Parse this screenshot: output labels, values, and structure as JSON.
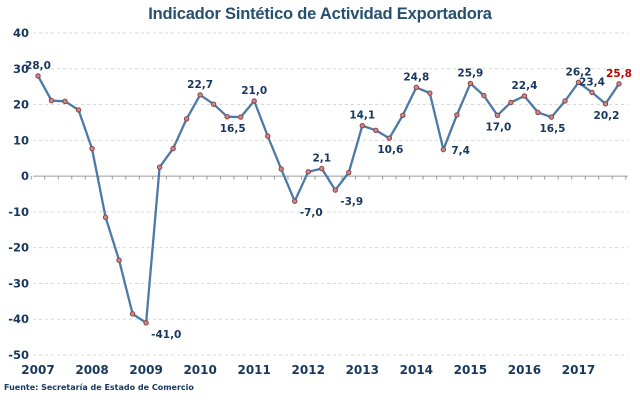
{
  "chart_data": {
    "type": "line",
    "title": "Indicador Sintético de Actividad Exportadora",
    "source": "Fuente: Secretaría de Estado de Comercio",
    "x_unit": "quarterly",
    "categories": [
      "2007",
      "2008",
      "2009",
      "2010",
      "2011",
      "2012",
      "2013",
      "2014",
      "2015",
      "2016",
      "2017"
    ],
    "y_ticks": [
      40,
      30,
      20,
      10,
      0,
      -10,
      -20,
      -30,
      -40,
      -50
    ],
    "ylim": [
      -50,
      40
    ],
    "grid": "dashed horizontal",
    "legend": "none",
    "values": [
      28.0,
      21.1,
      20.9,
      18.5,
      7.7,
      -11.5,
      -23.5,
      -38.5,
      -41.0,
      2.5,
      7.7,
      16.0,
      22.7,
      20.1,
      16.6,
      16.5,
      21.0,
      11.2,
      2.0,
      -7.0,
      1.2,
      2.1,
      -3.9,
      1.0,
      14.1,
      12.8,
      10.6,
      17.0,
      24.8,
      23.2,
      7.4,
      17.1,
      25.9,
      22.5,
      17.0,
      20.6,
      22.4,
      17.8,
      16.5,
      21.0,
      26.2,
      23.4,
      20.2,
      25.8
    ],
    "point_labels": [
      {
        "index": 0,
        "text": "28,0",
        "pos": "above"
      },
      {
        "index": 8,
        "text": "-41,0",
        "pos": "below-right"
      },
      {
        "index": 12,
        "text": "22,7",
        "pos": "above"
      },
      {
        "index": 15,
        "text": "16,5",
        "pos": "below-left"
      },
      {
        "index": 16,
        "text": "21,0",
        "pos": "above"
      },
      {
        "index": 19,
        "text": "-7,0",
        "pos": "below-right"
      },
      {
        "index": 21,
        "text": "2,1",
        "pos": "above"
      },
      {
        "index": 22,
        "text": "-3,9",
        "pos": "below-right"
      },
      {
        "index": 24,
        "text": "14,1",
        "pos": "above"
      },
      {
        "index": 26,
        "text": "10,6",
        "pos": "below"
      },
      {
        "index": 28,
        "text": "24,8",
        "pos": "above"
      },
      {
        "index": 30,
        "text": "7,4",
        "pos": "right"
      },
      {
        "index": 32,
        "text": "25,9",
        "pos": "above"
      },
      {
        "index": 34,
        "text": "17,0",
        "pos": "below"
      },
      {
        "index": 36,
        "text": "22,4",
        "pos": "above"
      },
      {
        "index": 38,
        "text": "16,5",
        "pos": "below"
      },
      {
        "index": 40,
        "text": "26,2",
        "pos": "above"
      },
      {
        "index": 41,
        "text": "23,4",
        "pos": "above"
      },
      {
        "index": 42,
        "text": "20,2",
        "pos": "below"
      },
      {
        "index": 43,
        "text": "25,8",
        "pos": "above",
        "color": "#c00000"
      }
    ],
    "colors": {
      "line": "#4c7aa7",
      "marker_fill": "#c98b88",
      "marker_stroke": "#8e4044",
      "label_navy": "#17375e",
      "label_red": "#c00000",
      "grid": "#d8d8d8",
      "axis": "#9b9b9b",
      "title": "#25506f",
      "background": "#ffffff"
    }
  }
}
